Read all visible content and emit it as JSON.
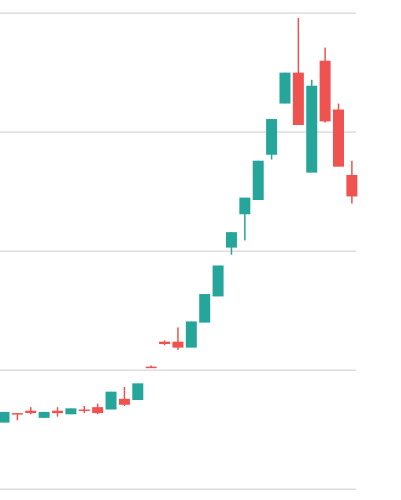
{
  "chart_data": {
    "type": "candlestick",
    "open": [
      0.56,
      0.64,
      0.66,
      0.6,
      0.66,
      0.63,
      0.67,
      0.69,
      0.67,
      0.76,
      0.75,
      1.03,
      1.24,
      1.24,
      1.19,
      1.4,
      1.62,
      2.03,
      2.31,
      2.43,
      2.81,
      3.24,
      3.5,
      2.66,
      3.6,
      3.19,
      2.64
    ],
    "high": [
      0.65,
      0.64,
      0.69,
      0.65,
      0.69,
      0.68,
      0.7,
      0.72,
      0.82,
      0.86,
      0.89,
      1.04,
      1.25,
      1.36,
      1.41,
      1.64,
      1.88,
      2.16,
      2.45,
      2.76,
      3.11,
      3.5,
      3.96,
      3.44,
      3.71,
      3.24,
      2.76
    ],
    "low": [
      0.56,
      0.58,
      0.63,
      0.6,
      0.61,
      0.63,
      0.64,
      0.63,
      0.67,
      0.7,
      0.75,
      1.02,
      1.21,
      1.17,
      1.19,
      1.4,
      1.62,
      1.97,
      2.09,
      2.43,
      2.77,
      3.24,
      3.06,
      2.66,
      3.08,
      2.71,
      2.4
    ],
    "close": [
      0.65,
      0.63,
      0.64,
      0.65,
      0.64,
      0.68,
      0.66,
      0.64,
      0.82,
      0.71,
      0.89,
      1.02,
      1.22,
      1.19,
      1.41,
      1.64,
      1.88,
      2.16,
      2.45,
      2.76,
      3.11,
      3.5,
      3.06,
      3.39,
      3.09,
      2.71,
      2.46
    ],
    "up_color": "#26a69a",
    "down_color": "#ef5350",
    "ylim": [
      -0.09,
      4.11
    ],
    "yticks": [
      0,
      1,
      2,
      3,
      4
    ],
    "grid": true
  }
}
